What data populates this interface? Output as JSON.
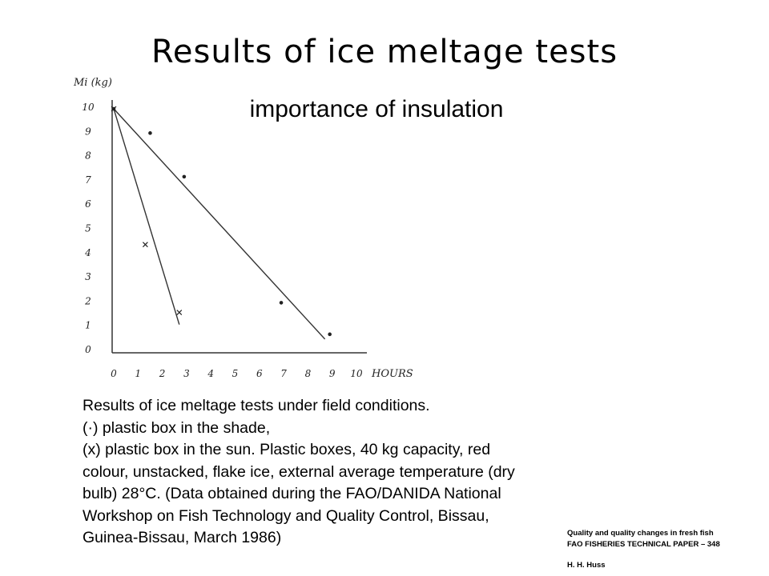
{
  "slide": {
    "title": "Results of ice meltage tests",
    "subtitle": "importance of insulation"
  },
  "chart_data": {
    "type": "scatter",
    "ylabel": "Mi (kg)",
    "xlabel": "HOURS",
    "xlim": [
      0,
      10
    ],
    "ylim": [
      0,
      10
    ],
    "x_ticks": [
      "0",
      "1",
      "2",
      "3",
      "4",
      "5",
      "6",
      "7",
      "8",
      "9",
      "10"
    ],
    "y_ticks": [
      "0",
      "1",
      "2",
      "3",
      "4",
      "5",
      "6",
      "7",
      "8",
      "9",
      "10"
    ],
    "grid": false,
    "series": [
      {
        "marker": "dot",
        "points": [
          [
            0,
            9.9
          ],
          [
            1.5,
            8.9
          ],
          [
            2.9,
            7.1
          ],
          [
            6.9,
            1.9
          ],
          [
            8.9,
            0.6
          ]
        ],
        "fit_line": [
          [
            0,
            9.9
          ],
          [
            8.7,
            0.4
          ]
        ]
      },
      {
        "marker": "x",
        "points": [
          [
            0,
            9.9
          ],
          [
            1.3,
            4.3
          ],
          [
            2.7,
            1.5
          ]
        ],
        "fit_line": [
          [
            0,
            9.9
          ],
          [
            2.7,
            1.0
          ]
        ]
      }
    ]
  },
  "caption": {
    "lines": [
      "Results of ice meltage tests under field conditions.",
      "(·) plastic box in the shade,",
      "(x) plastic box in the sun. Plastic boxes, 40 kg capacity, red",
      "colour, unstacked, flake ice, external average temperature (dry",
      "bulb) 28°C. (Data obtained during the FAO/DANIDA National",
      "Workshop on Fish Technology and Quality Control, Bissau,",
      "Guinea-Bissau, March 1986)"
    ]
  },
  "source": {
    "line1": "Quality and quality changes in fresh fish",
    "line2": "FAO FISHERIES TECHNICAL PAPER – 348",
    "author": "H. H. Huss"
  }
}
